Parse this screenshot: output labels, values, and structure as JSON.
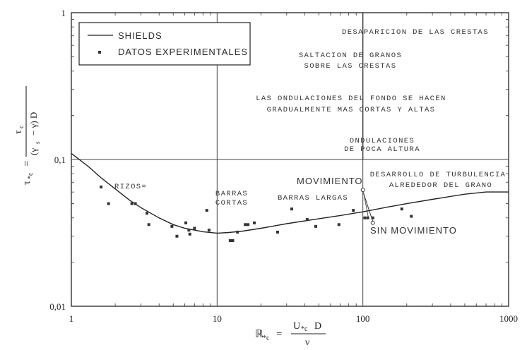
{
  "chart_data": {
    "type": "line",
    "x_scale": "log",
    "y_scale": "log",
    "xlim": [
      1,
      1000
    ],
    "ylim": [
      0.01,
      1
    ],
    "x_ticks": [
      "1",
      "10",
      "100",
      "1000"
    ],
    "y_ticks": [
      "1",
      "0,1",
      "0,01"
    ],
    "vertical_gridlines_at": [
      10,
      100
    ],
    "horizontal_gridlines_at": [
      0.1
    ],
    "xlabel": {
      "main": "ℝ",
      "sub": "*c",
      "eq": "=",
      "num": "U",
      "num_sub": "*c",
      "num_tail": "D",
      "den": "ν"
    },
    "ylabel": {
      "main": "τ",
      "sub": "*c",
      "eq": "=",
      "num": "τ",
      "num_sub": "c",
      "den": "(γ",
      "den_sub": "s",
      "den_tail": "− γ) D"
    },
    "legend": {
      "position": "top-left",
      "line_label": "SHIELDS",
      "marker_label": "DATOS EXPERIMENTALES"
    },
    "series": [
      {
        "name": "SHIELDS",
        "kind": "curve",
        "x": [
          1,
          1.3,
          1.6,
          2,
          2.5,
          3,
          4,
          5,
          6,
          7,
          8,
          10,
          12,
          15,
          20,
          30,
          50,
          70,
          100,
          150,
          200,
          300,
          500,
          700,
          1000
        ],
        "y": [
          0.11,
          0.09,
          0.075,
          0.063,
          0.053,
          0.047,
          0.04,
          0.036,
          0.034,
          0.033,
          0.0322,
          0.0315,
          0.0318,
          0.0325,
          0.034,
          0.0365,
          0.0395,
          0.0415,
          0.044,
          0.0475,
          0.05,
          0.0535,
          0.058,
          0.06,
          0.06
        ]
      },
      {
        "name": "DATOS EXPERIMENTALES",
        "kind": "scatter",
        "x": [
          1.6,
          1.8,
          2.6,
          2.75,
          3.3,
          3.4,
          4.9,
          5.3,
          6.1,
          6.4,
          6.5,
          7.0,
          8.5,
          8.8,
          12.3,
          12.8,
          13.8,
          15.6,
          16.3,
          18.0,
          26.0,
          32.5,
          41.5,
          47.5,
          68.5,
          86.0,
          103,
          108,
          117,
          185,
          215
        ],
        "y": [
          0.065,
          0.05,
          0.05,
          0.05,
          0.043,
          0.036,
          0.035,
          0.03,
          0.037,
          0.033,
          0.031,
          0.034,
          0.045,
          0.033,
          0.028,
          0.028,
          0.032,
          0.036,
          0.036,
          0.037,
          0.032,
          0.046,
          0.039,
          0.035,
          0.036,
          0.045,
          0.04,
          0.04,
          0.04,
          0.046,
          0.041
        ]
      }
    ],
    "vertical_marker_line": {
      "x": 100,
      "ymin": 0.1,
      "ymax": 1
    },
    "annotations": {
      "top_regime": "DESAPARICION DE LAS CRESTAS",
      "saltacion_line1": "SALTACION DE GRANOS",
      "saltacion_line2": "SOBRE LAS CRESTAS",
      "ondulaciones_fondo_line1": "LAS ONDULACIONES DEL FONDO SE HACEN",
      "ondulaciones_fondo_line2": "GRADUALMENTE MAS CORTAS Y ALTAS",
      "ondulaciones_poca_line1": "ONDULACIONES",
      "ondulaciones_poca_line2": "DE POCA ALTURA",
      "rizos": "RIZOS=",
      "barras_cortas_line1": "BARRAS",
      "barras_cortas_line2": "CORTAS",
      "barras_largas": "BARRAS LARGAS",
      "movimiento": "MOVIMIENTO",
      "sin_movimiento": "SIN MOVIMIENTO",
      "turbulencia_line1": "DESARROLLO DE TURBULENCIA",
      "turbulencia_line2": "ALREDEDOR DEL GRANO"
    }
  }
}
